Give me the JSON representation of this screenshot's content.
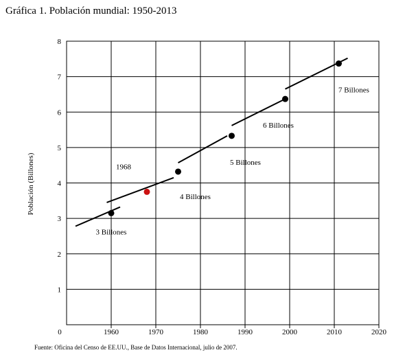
{
  "chart_data": {
    "type": "scatter",
    "title": "Gráfica 1. Población mundial: 1950-2013",
    "source": "Fuente: Oficina del Censo de EE.UU., Base de Datos Internacional, julio de 2007.",
    "xlabel": "",
    "ylabel": "Población (Billones)",
    "xlim": [
      1950,
      2020
    ],
    "ylim": [
      0,
      8
    ],
    "x_ticks": [
      1960,
      1970,
      1980,
      1990,
      2000,
      2010,
      2020
    ],
    "x_origin_label": "0",
    "y_ticks": [
      1,
      2,
      3,
      4,
      5,
      6,
      7,
      8
    ],
    "grid": true,
    "points": [
      {
        "x": 1960,
        "y": 3.15,
        "label": "3 Billones",
        "color": "#000000"
      },
      {
        "x": 1975,
        "y": 4.32,
        "label": "4 Billones",
        "color": "#000000"
      },
      {
        "x": 1987,
        "y": 5.33,
        "label": "5 Billones",
        "color": "#000000"
      },
      {
        "x": 1999,
        "y": 6.37,
        "label": "6 Billones",
        "color": "#000000"
      },
      {
        "x": 2011,
        "y": 7.37,
        "label": "7 Billones",
        "color": "#000000"
      }
    ],
    "highlight_point": {
      "x": 1968,
      "y": 3.75,
      "label": "1968",
      "color": "#cc1111"
    },
    "trend_segments": [
      {
        "x1": 1952,
        "y1": 2.78,
        "x2": 1962,
        "y2": 3.32
      },
      {
        "x1": 1959,
        "y1": 3.45,
        "x2": 1974,
        "y2": 4.15
      },
      {
        "x1": 1975,
        "y1": 4.57,
        "x2": 1986,
        "y2": 5.33
      },
      {
        "x1": 1987,
        "y1": 5.62,
        "x2": 1999,
        "y2": 6.37
      },
      {
        "x1": 1999,
        "y1": 6.65,
        "x2": 2013,
        "y2": 7.52
      }
    ]
  }
}
